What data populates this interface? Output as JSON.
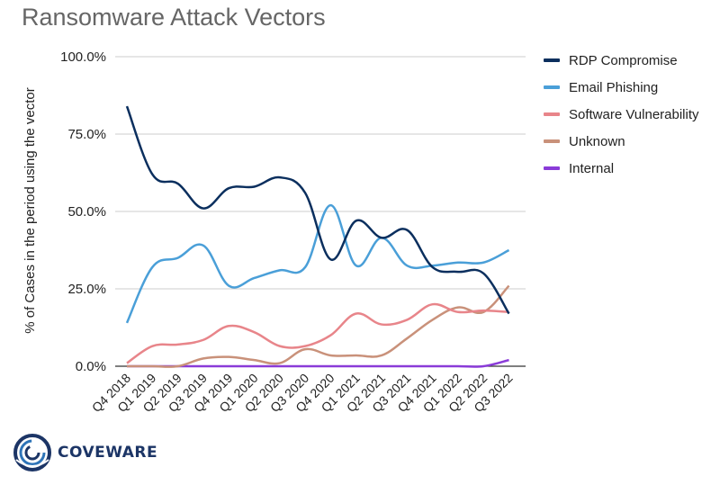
{
  "colors": {
    "RDP Compromise": "#0b2f5e",
    "Email Phishing": "#4a9fd8",
    "Software Vulnerability": "#e8858a",
    "Unknown": "#c9917a",
    "Internal": "#8a3bd8"
  },
  "logo": {
    "name": "COVEWARE",
    "icon": "coveware-swirl-logo"
  },
  "chart_data": {
    "type": "line",
    "title": "Ransomware Attack Vectors",
    "ylabel": "% of Cases in the period using the vector",
    "xlabel": "",
    "ylim": [
      0,
      100
    ],
    "yticks": [
      "0.0%",
      "25.0%",
      "50.0%",
      "75.0%",
      "100.0%"
    ],
    "grid": true,
    "legend_position": "right",
    "categories": [
      "Q4 2018",
      "Q1 2019",
      "Q2 2019",
      "Q3 2019",
      "Q4 2019",
      "Q1 2020",
      "Q2 2020",
      "Q3 2020",
      "Q4 2020",
      "Q1 2021",
      "Q2 2021",
      "Q3 2021",
      "Q4 2021",
      "Q1 2022",
      "Q2 2022",
      "Q3 2022"
    ],
    "series": [
      {
        "name": "RDP Compromise",
        "values": [
          84,
          62,
          59,
          51,
          57.5,
          58,
          61,
          56,
          34.5,
          47,
          41.5,
          44,
          32,
          30.5,
          30,
          17
        ]
      },
      {
        "name": "Email Phishing",
        "values": [
          14,
          32,
          35,
          39,
          26,
          28.5,
          31,
          32,
          52,
          32.5,
          41.5,
          32.5,
          32.5,
          33.5,
          33.5,
          37.5
        ]
      },
      {
        "name": "Software Vulnerability",
        "values": [
          1,
          6.5,
          7,
          8.5,
          13,
          11,
          6.5,
          6.5,
          10,
          17,
          13.5,
          15,
          20,
          17.5,
          18,
          17.5
        ]
      },
      {
        "name": "Unknown",
        "values": [
          0,
          0,
          0,
          2.5,
          3,
          2,
          1,
          5.5,
          3.5,
          3.5,
          3.5,
          9,
          15,
          19,
          17.5,
          26
        ]
      },
      {
        "name": "Internal",
        "values": [
          0,
          0,
          0,
          0,
          0,
          0,
          0,
          0,
          0,
          0,
          0,
          0,
          0,
          0,
          0,
          2
        ]
      }
    ]
  }
}
